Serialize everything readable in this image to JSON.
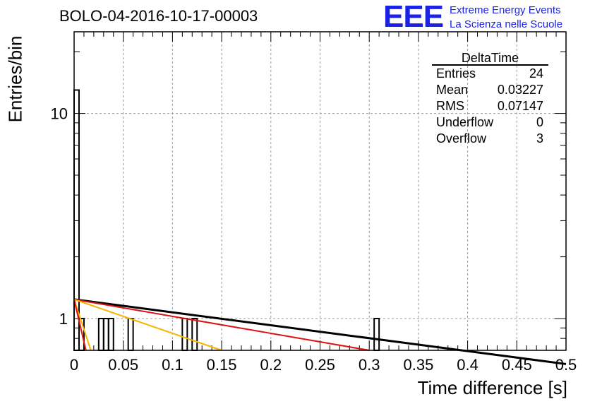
{
  "header": {
    "title": "BOLO-04-2016-10-17-00003",
    "logo_text": "EEE",
    "logo_line1": "Extreme Energy Events",
    "logo_line2": "La Scienza nelle Scuole"
  },
  "chart_data": {
    "type": "bar",
    "xlabel": "Time difference [s]",
    "ylabel": "Entries/bin",
    "xlim": [
      0,
      0.5
    ],
    "ylim": [
      0.7,
      25
    ],
    "log_y": true,
    "grid": true,
    "x_ticks": [
      "0",
      "0.05",
      "0.1",
      "0.15",
      "0.2",
      "0.25",
      "0.3",
      "0.35",
      "0.4",
      "0.45",
      "0.5"
    ],
    "y_ticks": [
      "1",
      "10"
    ],
    "bin_width": 0.005,
    "bins": [
      {
        "x": 0.0,
        "value": 13
      },
      {
        "x": 0.005,
        "value": 1
      },
      {
        "x": 0.025,
        "value": 1
      },
      {
        "x": 0.03,
        "value": 1
      },
      {
        "x": 0.035,
        "value": 1
      },
      {
        "x": 0.055,
        "value": 1
      },
      {
        "x": 0.11,
        "value": 1
      },
      {
        "x": 0.12,
        "value": 1
      },
      {
        "x": 0.305,
        "value": 1
      }
    ],
    "fits": [
      {
        "color": "#000000",
        "points": [
          [
            0,
            1.24
          ],
          [
            0.5,
            0.6
          ]
        ]
      },
      {
        "color": "#dd1111",
        "points": [
          [
            0,
            1.24
          ],
          [
            0.3,
            0.7
          ]
        ]
      },
      {
        "color": "#f5b400",
        "points": [
          [
            0,
            1.24
          ],
          [
            0.15,
            0.7
          ]
        ]
      },
      {
        "color": "#f5b400",
        "points": [
          [
            0,
            1.24
          ],
          [
            0.017,
            0.7
          ]
        ]
      },
      {
        "color": "#dd1111",
        "points": [
          [
            0,
            1.24
          ],
          [
            0.012,
            0.7
          ]
        ]
      }
    ],
    "stats": {
      "title": "DeltaTime",
      "rows": [
        {
          "label": "Entries",
          "value": "24"
        },
        {
          "label": "Mean",
          "value": "0.03227"
        },
        {
          "label": "RMS",
          "value": "0.07147"
        },
        {
          "label": "Underflow",
          "value": "0"
        },
        {
          "label": "Overflow",
          "value": "3"
        }
      ]
    }
  }
}
